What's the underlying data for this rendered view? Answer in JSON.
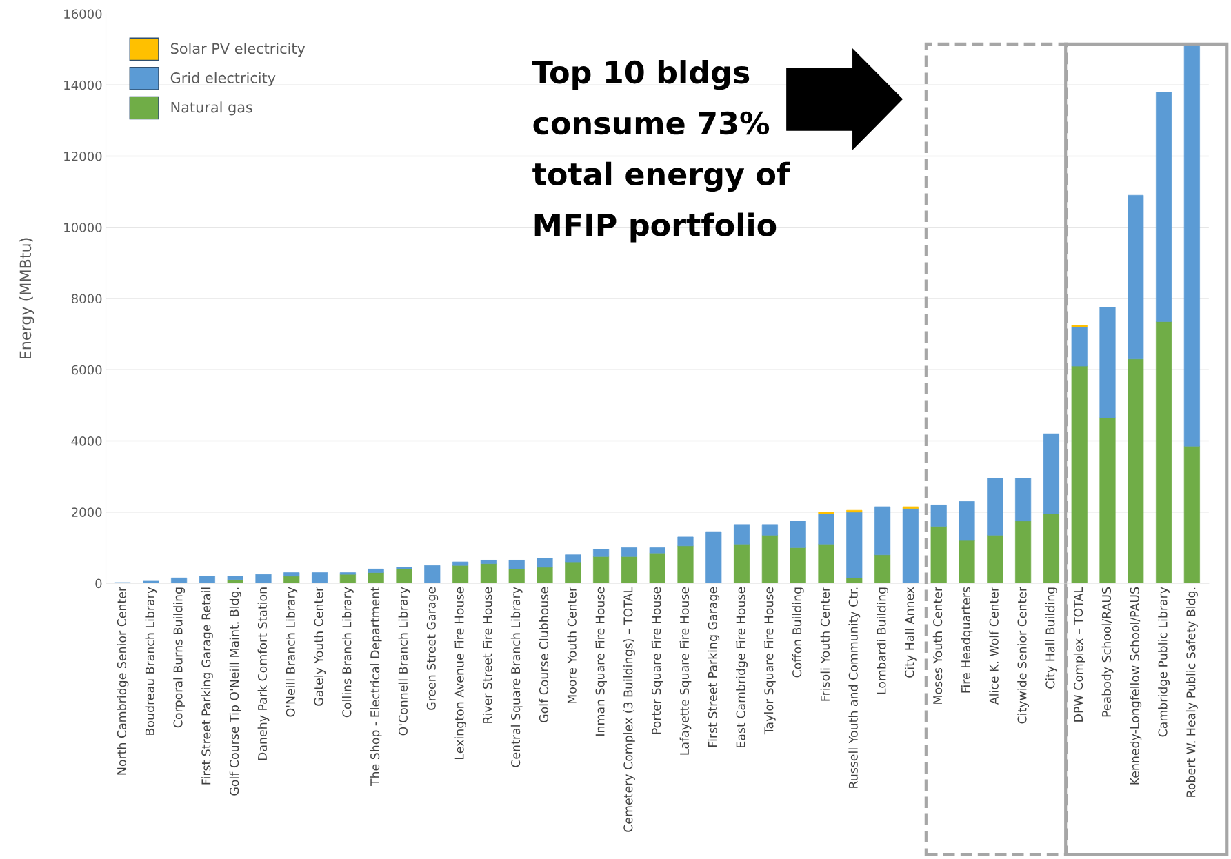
{
  "chart_data": {
    "type": "bar",
    "stacked": true,
    "ylabel": "Energy (MMBtu)",
    "categories": [
      "North Cambridge Senior Center",
      "Boudreau Branch Library",
      "Corporal Burns Building",
      "First Street Parking Garage Retail",
      "Golf Course Tip O'Neill Maint. Bldg.",
      "Danehy Park Comfort Station",
      "O'Neill Branch Library",
      "Gately Youth Center",
      "Collins Branch Library",
      "The Shop - Electrical Department",
      "O'Connell Branch Library",
      "Green Street Garage",
      "Lexington Avenue Fire House",
      "River Street Fire House",
      "Central Square Branch Library",
      "Golf Course Clubhouse",
      "Moore Youth Center",
      "Inman Square Fire House",
      "Cemetery Complex (3 Buildings) – TOTAL",
      "Porter Square Fire House",
      "Lafayette Square Fire House",
      "First Street Parking Garage",
      "East Cambridge Fire House",
      "Taylor Square Fire House",
      "Coffon Building",
      "Frisoli Youth Center",
      "Russell Youth and Community Ctr.",
      "Lombardi Building",
      "City Hall Annex",
      "Moses Youth Center",
      "Fire Headquarters",
      "Alice K. Wolf Center",
      "Citywide Senior Center",
      "City Hall Building",
      "DPW Complex – TOTAL",
      "Peabody School/RAUS",
      "Kennedy-Longfellow School/PAUS",
      "Cambridge Public Library",
      "Robert W. Healy Public Safety Bldg."
    ],
    "series": [
      {
        "name": "Natural gas",
        "color": "#70ad47",
        "values": [
          null,
          null,
          null,
          null,
          100,
          null,
          200,
          null,
          250,
          300,
          400,
          null,
          500,
          550,
          400,
          450,
          600,
          750,
          750,
          850,
          1050,
          null,
          1100,
          1350,
          1000,
          1100,
          150,
          800,
          null,
          1600,
          1200,
          1350,
          1750,
          1950,
          6100,
          4650,
          6300,
          7350,
          3850
        ]
      },
      {
        "name": "Grid electricity",
        "color": "#5b9bd5",
        "values": [
          20,
          60,
          150,
          200,
          100,
          250,
          100,
          300,
          50,
          100,
          50,
          500,
          100,
          100,
          250,
          250,
          200,
          200,
          250,
          150,
          250,
          1450,
          550,
          300,
          750,
          850,
          1850,
          1350,
          2100,
          600,
          1100,
          1600,
          1200,
          2250,
          1100,
          3100,
          4600,
          6450,
          11250
        ]
      },
      {
        "name": "Solar PV electricity",
        "color": "#ffc000",
        "values": [
          null,
          null,
          null,
          null,
          null,
          null,
          null,
          null,
          null,
          null,
          null,
          null,
          null,
          null,
          null,
          null,
          null,
          null,
          null,
          null,
          null,
          null,
          null,
          null,
          null,
          50,
          50,
          null,
          50,
          null,
          null,
          null,
          null,
          null,
          50,
          null,
          null,
          null,
          null
        ]
      }
    ],
    "ylim": [
      0,
      16000
    ],
    "yticks": [
      0,
      2000,
      4000,
      6000,
      8000,
      10000,
      12000,
      14000,
      16000
    ],
    "grid": "y",
    "legend": "top left",
    "annotations": [
      "Top 10 bldgs",
      "consume 73%",
      "total energy of",
      "MFIP portfolio"
    ]
  }
}
